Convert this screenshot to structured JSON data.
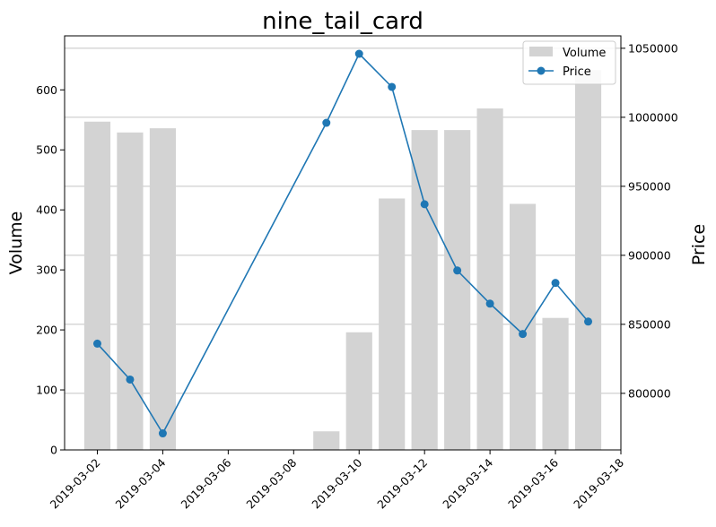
{
  "chart_data": {
    "type": "bar",
    "title": "nine_tail_card",
    "ylabel": "Volume",
    "y2label": "Price",
    "grid": "horizontal, right axis",
    "legend_placement": "top-right",
    "colors": {
      "volume": "#d3d3d3",
      "price": "#1f77b4",
      "grid": "#b0b0b0"
    },
    "x_axis": {
      "type": "date",
      "range": [
        "2019-03-01",
        "2019-03-18"
      ],
      "ticks": [
        "2019-03-02",
        "2019-03-04",
        "2019-03-06",
        "2019-03-08",
        "2019-03-10",
        "2019-03-12",
        "2019-03-14",
        "2019-03-16",
        "2019-03-18"
      ]
    },
    "y_left": {
      "range": [
        0,
        690
      ],
      "ticks": [
        0,
        100,
        200,
        300,
        400,
        500,
        600
      ]
    },
    "y_right": {
      "range": [
        759000,
        1059000
      ],
      "ticks": [
        800000,
        850000,
        900000,
        950000,
        1000000,
        1050000
      ]
    },
    "series": [
      {
        "name": "Volume",
        "kind": "bar",
        "axis": "left",
        "x": [
          "2019-03-02",
          "2019-03-03",
          "2019-03-04",
          "2019-03-09",
          "2019-03-10",
          "2019-03-11",
          "2019-03-12",
          "2019-03-13",
          "2019-03-14",
          "2019-03-15",
          "2019-03-16",
          "2019-03-17"
        ],
        "values": [
          547,
          529,
          536,
          31,
          196,
          419,
          533,
          533,
          569,
          410,
          220,
          633
        ]
      },
      {
        "name": "Price",
        "kind": "line",
        "axis": "right",
        "x": [
          "2019-03-02",
          "2019-03-03",
          "2019-03-04",
          "2019-03-09",
          "2019-03-10",
          "2019-03-11",
          "2019-03-12",
          "2019-03-13",
          "2019-03-14",
          "2019-03-15",
          "2019-03-16",
          "2019-03-17"
        ],
        "values": [
          836000,
          810000,
          771000,
          996000,
          1046000,
          1022000,
          937000,
          889000,
          865000,
          843000,
          880000,
          852000
        ]
      }
    ]
  }
}
